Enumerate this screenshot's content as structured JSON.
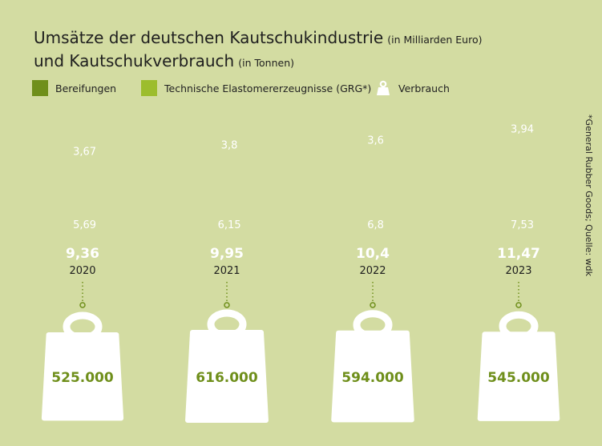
{
  "title_line1": "Umsätze der deutschen Kautschukindustrie",
  "title_line1_unit": "(in Milliarden Euro)",
  "title_line2": "und Kautschukverbrauch",
  "title_line2_unit": "(in Tonnen)",
  "legend": {
    "tires": "Bereifungen",
    "grg": "Technische Elastomerer­zeugnisse (GRG*)",
    "consumption": "Verbrauch"
  },
  "source": "*General Rubber Goods; Quelle: wdk",
  "colors": {
    "background": "#d3dca2",
    "tires": "#6f8f1b",
    "grg": "#9cbd2d",
    "weight": "#ffffff",
    "weight_text": "#6f8f1b",
    "totals": "#ffffff"
  },
  "chart_data": {
    "type": "bar",
    "categories": [
      "2020",
      "2021",
      "2022",
      "2023"
    ],
    "series": [
      {
        "name": "Bereifungen",
        "values": [
          3.67,
          3.8,
          3.6,
          3.94
        ],
        "labels": [
          "3,67",
          "3,8",
          "3,6",
          "3,94"
        ]
      },
      {
        "name": "Technische Elastomerer­zeugnisse (GRG*)",
        "values": [
          5.69,
          6.15,
          6.8,
          7.53
        ],
        "labels": [
          "5,69",
          "6,15",
          "6,8",
          "7,53"
        ]
      }
    ],
    "totals": [
      9.36,
      9.95,
      10.4,
      11.47
    ],
    "total_labels": [
      "9,36",
      "9,95",
      "10,4",
      "11,47"
    ],
    "consumption": {
      "name": "Verbrauch",
      "values": [
        525000,
        616000,
        594000,
        545000
      ],
      "labels": [
        "525.000",
        "616.000",
        "594.000",
        "545.000"
      ]
    }
  }
}
